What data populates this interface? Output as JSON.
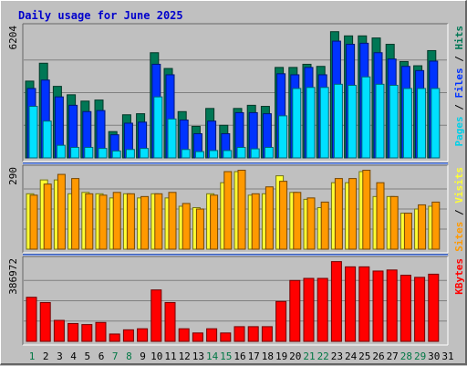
{
  "chart_data": {
    "type": "bar",
    "title": "Daily usage for June 2025",
    "categories": [
      "1",
      "2",
      "3",
      "4",
      "5",
      "6",
      "7",
      "8",
      "9",
      "10",
      "11",
      "12",
      "13",
      "14",
      "15",
      "16",
      "17",
      "18",
      "19",
      "20",
      "21",
      "22",
      "23",
      "24",
      "25",
      "26",
      "27",
      "28",
      "29",
      "30",
      "31"
    ],
    "weekend_days": [
      "1",
      "7",
      "8",
      "14",
      "15",
      "21",
      "22",
      "28",
      "29"
    ],
    "colors": {
      "title": "#0000cc",
      "axis_label": "#000000",
      "weekday_label": "#000000",
      "weekend_label": "#007744",
      "pages": "#00e0ff",
      "files": "#0033ff",
      "hits": "#007755",
      "sites": "#ff9900",
      "visits": "#ffff33",
      "kbytes": "#ff0000",
      "separator_dark": "#3355aa",
      "separator_light": "#88aaff"
    },
    "panels": [
      {
        "id": "hits-files-pages",
        "y_max_label": "6204",
        "ylim": [
          0,
          6204
        ],
        "legend": [
          {
            "label": "Pages",
            "color": "#00d0e8"
          },
          {
            "label": " / ",
            "color": "#000000"
          },
          {
            "label": "Files",
            "color": "#0033ff"
          },
          {
            "label": " / ",
            "color": "#000000"
          },
          {
            "label": "Hits",
            "color": "#007755"
          }
        ],
        "series": [
          {
            "name": "Hits",
            "values": [
              3650,
              4500,
              3400,
              3000,
              2700,
              2750,
              1250,
              2050,
              2100,
              5000,
              4250,
              2200,
              1500,
              2350,
              1550,
              2350,
              2500,
              2450,
              4300,
              4300,
              4450,
              4350,
              6000,
              5800,
              5800,
              5700,
              5400,
              4580,
              4380,
              5100,
              0
            ]
          },
          {
            "name": "Files",
            "values": [
              3300,
              3700,
              2900,
              2500,
              2200,
              2250,
              1100,
              1650,
              1700,
              4450,
              3950,
              1800,
              1150,
              1750,
              1150,
              2150,
              2150,
              2100,
              4000,
              3950,
              4300,
              3950,
              5550,
              5400,
              5450,
              5000,
              4700,
              4350,
              4150,
              4600,
              0
            ]
          },
          {
            "name": "Pages",
            "values": [
              2450,
              1750,
              600,
              500,
              500,
              450,
              330,
              400,
              450,
              2900,
              1850,
              400,
              300,
              350,
              350,
              500,
              430,
              500,
              2000,
              3300,
              3350,
              3350,
              3500,
              3450,
              3850,
              3500,
              3450,
              3300,
              3300,
              3300,
              0
            ]
          }
        ]
      },
      {
        "id": "visits-sites",
        "y_max_label": "290",
        "ylim": [
          0,
          290
        ],
        "legend": [
          {
            "label": "Sites",
            "color": "#ff9900"
          },
          {
            "label": " / ",
            "color": "#000000"
          },
          {
            "label": "Visits",
            "color": "#ffff33"
          }
        ],
        "series": [
          {
            "name": "Visits",
            "values": [
              200,
              250,
              250,
              200,
              205,
              200,
              185,
              200,
              185,
              200,
              185,
              155,
              150,
              200,
              240,
              280,
              195,
              200,
              265,
              205,
              180,
              150,
              240,
              240,
              280,
              190,
              190,
              130,
              145,
              155,
              0
            ]
          },
          {
            "name": "Sites",
            "values": [
              195,
              235,
              270,
              255,
              200,
              195,
              205,
              200,
              190,
              200,
              205,
              165,
              145,
              195,
              280,
              285,
              200,
              225,
              245,
              205,
              185,
              170,
              255,
              255,
              285,
              240,
              190,
              130,
              160,
              170,
              0
            ]
          }
        ]
      },
      {
        "id": "kbytes",
        "y_max_label": "386972",
        "ylim": [
          0,
          386972
        ],
        "legend": [
          {
            "label": "KBytes",
            "color": "#ff0000"
          }
        ],
        "series": [
          {
            "name": "KBytes",
            "values": [
              210000,
              185000,
              100000,
              85000,
              80000,
              90000,
              35000,
              55000,
              60000,
              245000,
              185000,
              60000,
              40000,
              60000,
              40000,
              70000,
              70000,
              70000,
              190000,
              290000,
              300000,
              300000,
              380000,
              355000,
              355000,
              335000,
              340000,
              315000,
              305000,
              320000,
              0
            ]
          }
        ]
      }
    ]
  }
}
